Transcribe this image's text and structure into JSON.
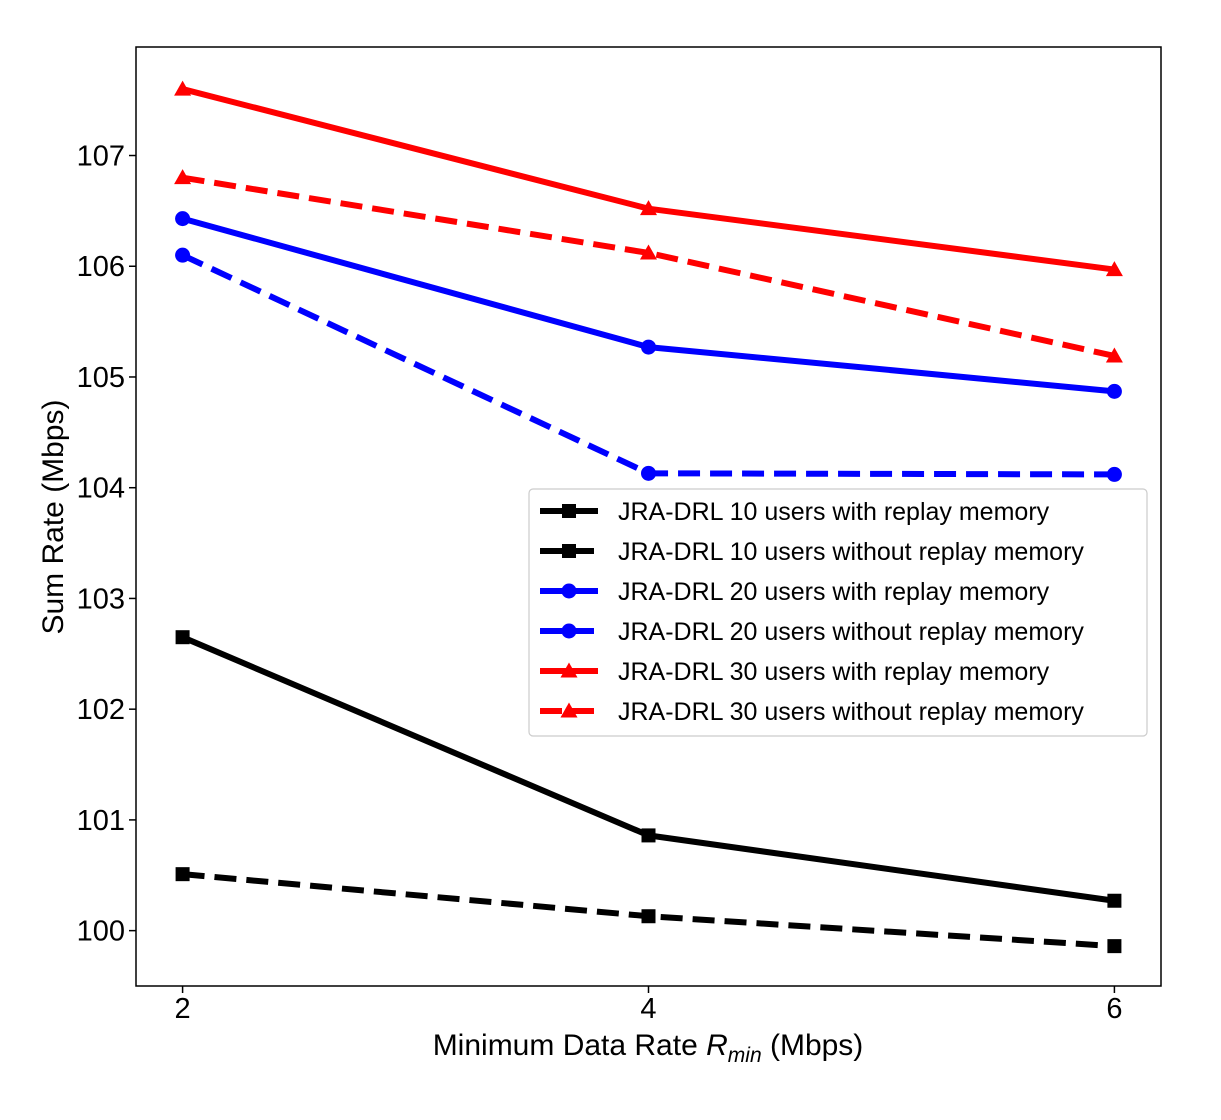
{
  "chart_data": {
    "type": "line",
    "title": "",
    "xlabel": {
      "prefix": "Minimum Data Rate ",
      "symbol": "R",
      "subscript": "min",
      "suffix": " (Mbps)"
    },
    "ylabel": "Sum Rate (Mbps)",
    "x": [
      2,
      4,
      6
    ],
    "xticks": [
      "2",
      "4",
      "6"
    ],
    "yticks": [
      "100",
      "101",
      "102",
      "103",
      "104",
      "105",
      "106",
      "107"
    ],
    "xlim": [
      1.8,
      6.2
    ],
    "ylim": [
      99.5,
      107.98
    ],
    "grid": false,
    "legend_position": "center-right",
    "series": [
      {
        "name": "JRA-DRL 10 users with replay memory",
        "values": [
          102.65,
          100.86,
          100.27
        ],
        "color": "#000000",
        "dashed": false,
        "marker": "square"
      },
      {
        "name": "JRA-DRL 10 users without replay memory",
        "values": [
          100.51,
          100.13,
          99.86
        ],
        "color": "#000000",
        "dashed": true,
        "marker": "square"
      },
      {
        "name": "JRA-DRL 20 users with replay memory",
        "values": [
          106.43,
          105.27,
          104.87
        ],
        "color": "#0000ff",
        "dashed": false,
        "marker": "circle"
      },
      {
        "name": "JRA-DRL 20 users without replay memory",
        "values": [
          106.1,
          104.13,
          104.12
        ],
        "color": "#0000ff",
        "dashed": true,
        "marker": "circle"
      },
      {
        "name": "JRA-DRL 30 users with replay memory",
        "values": [
          107.6,
          106.52,
          105.97
        ],
        "color": "#ff0000",
        "dashed": false,
        "marker": "triangle"
      },
      {
        "name": "JRA-DRL 30 users without replay memory",
        "values": [
          106.8,
          106.12,
          105.19
        ],
        "color": "#ff0000",
        "dashed": true,
        "marker": "triangle"
      }
    ]
  }
}
